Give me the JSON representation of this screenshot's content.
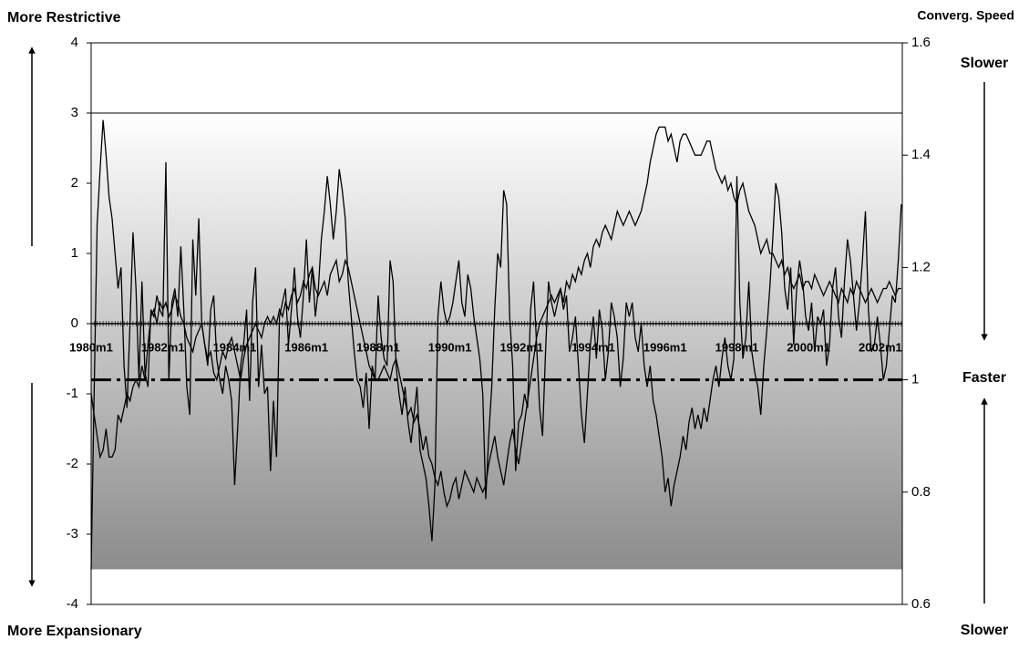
{
  "chart_data": {
    "type": "line",
    "left_top_label": "More Restrictive",
    "left_bottom_label": "More Expansionary",
    "right_axis_title": "Converg. Speed",
    "right_top_label": "Slower",
    "right_middle_label": "Faster",
    "right_bottom_label": "Slower",
    "categories": [
      "1980m1",
      null,
      null,
      null,
      null,
      null,
      null,
      null,
      null,
      null,
      null,
      null,
      null,
      null,
      null,
      null,
      null,
      null,
      null,
      null,
      null,
      null,
      null,
      null,
      "1982m1",
      null,
      null,
      null,
      null,
      null,
      null,
      null,
      null,
      null,
      null,
      null,
      null,
      null,
      null,
      null,
      null,
      null,
      null,
      null,
      null,
      null,
      null,
      null,
      "1984m1",
      null,
      null,
      null,
      null,
      null,
      null,
      null,
      null,
      null,
      null,
      null,
      null,
      null,
      null,
      null,
      null,
      null,
      null,
      null,
      null,
      null,
      null,
      null,
      "1986m1",
      null,
      null,
      null,
      null,
      null,
      null,
      null,
      null,
      null,
      null,
      null,
      null,
      null,
      null,
      null,
      null,
      null,
      null,
      null,
      null,
      null,
      null,
      null,
      "1988m1",
      null,
      null,
      null,
      null,
      null,
      null,
      null,
      null,
      null,
      null,
      null,
      null,
      null,
      null,
      null,
      null,
      null,
      null,
      null,
      null,
      null,
      null,
      null,
      "1990m1",
      null,
      null,
      null,
      null,
      null,
      null,
      null,
      null,
      null,
      null,
      null,
      null,
      null,
      null,
      null,
      null,
      null,
      null,
      null,
      null,
      null,
      null,
      null,
      "1992m1",
      null,
      null,
      null,
      null,
      null,
      null,
      null,
      null,
      null,
      null,
      null,
      null,
      null,
      null,
      null,
      null,
      null,
      null,
      null,
      null,
      null,
      null,
      null,
      "1994m1",
      null,
      null,
      null,
      null,
      null,
      null,
      null,
      null,
      null,
      null,
      null,
      null,
      null,
      null,
      null,
      null,
      null,
      null,
      null,
      null,
      null,
      null,
      null,
      "1996m1",
      null,
      null,
      null,
      null,
      null,
      null,
      null,
      null,
      null,
      null,
      null,
      null,
      null,
      null,
      null,
      null,
      null,
      null,
      null,
      null,
      null,
      null,
      null,
      "1998m1",
      null,
      null,
      null,
      null,
      null,
      null,
      null,
      null,
      null,
      null,
      null,
      null,
      null,
      null,
      null,
      null,
      null,
      null,
      null,
      null,
      null,
      null,
      null,
      "2000m1",
      null,
      null,
      null,
      null,
      null,
      null,
      null,
      null,
      null,
      null,
      null,
      null,
      null,
      null,
      null,
      null,
      null,
      null,
      null,
      null,
      null,
      null,
      null,
      "2002m1",
      null,
      null,
      null,
      null,
      null,
      null,
      null
    ],
    "series": [
      {
        "color": "#000000",
        "values": [
          -3.5,
          -1.0,
          1.4,
          2.2,
          2.9,
          2.4,
          1.8,
          1.5,
          1.0,
          0.5,
          0.8,
          -0.6,
          -1.2,
          0.0,
          1.3,
          0.5,
          -0.8,
          0.6,
          -0.7,
          -0.9,
          0.2,
          0.1,
          0.4,
          0.2,
          0.1,
          2.3,
          -0.8,
          0.3,
          0.5,
          0.1,
          1.1,
          0.2,
          -0.9,
          -1.3,
          1.2,
          0.4,
          1.5,
          0.0,
          -0.3,
          -0.6,
          0.2,
          0.4,
          -0.5,
          -0.8,
          -1.0,
          -0.6,
          -0.8,
          -1.1,
          -2.3,
          -1.5,
          -0.6,
          -0.3,
          0.2,
          -1.1,
          0.3,
          0.8,
          -0.9,
          -0.3,
          -1.0,
          -0.9,
          -2.1,
          -1.1,
          -1.9,
          0.1,
          0.3,
          0.5,
          -0.3,
          0.2,
          0.8,
          0.1,
          -0.2,
          0.4,
          1.2,
          0.3,
          0.8,
          0.1,
          0.5,
          1.2,
          1.6,
          2.1,
          1.7,
          1.2,
          1.6,
          2.2,
          1.9,
          1.5,
          0.6,
          0.1,
          -0.4,
          -0.8,
          -0.9,
          -1.2,
          -0.7,
          -1.5,
          -0.6,
          -0.8,
          0.4,
          -0.2,
          -0.5,
          -0.6,
          0.9,
          0.6,
          -0.6,
          -1.0,
          -1.3,
          -0.9,
          -1.4,
          -1.7,
          -1.3,
          -0.9,
          -1.8,
          -2.0,
          -2.2,
          -2.6,
          -3.1,
          -2.3,
          0.1,
          0.6,
          0.2,
          0.0,
          0.1,
          0.3,
          0.6,
          0.9,
          0.3,
          0.1,
          0.7,
          0.5,
          0.1,
          -0.2,
          -0.5,
          -1.0,
          -2.5,
          -1.6,
          -0.9,
          0.2,
          1.0,
          0.8,
          1.9,
          1.7,
          0.1,
          -0.6,
          -2.1,
          -1.4,
          -1.3,
          -1.0,
          -1.2,
          0.2,
          0.6,
          -0.3,
          -1.2,
          -1.6,
          -0.4,
          0.6,
          0.3,
          0.1,
          0.3,
          0.5,
          0.2,
          0.4,
          -0.4,
          -0.2,
          0.1,
          -0.6,
          -1.3,
          -1.7,
          -1.0,
          -0.3,
          0.1,
          -0.5,
          0.2,
          -0.1,
          -0.8,
          -0.4,
          0.3,
          0.1,
          -0.2,
          -0.9,
          -0.5,
          0.3,
          0.1,
          0.3,
          -0.2,
          -0.4,
          0.0,
          -0.6,
          -0.9,
          -0.6,
          -1.1,
          -1.3,
          -1.6,
          -1.9,
          -2.4,
          -2.2,
          -2.6,
          -2.3,
          -2.1,
          -1.9,
          -1.6,
          -1.8,
          -1.4,
          -1.2,
          -1.5,
          -1.3,
          -1.5,
          -1.2,
          -1.4,
          -1.1,
          -0.8,
          -0.6,
          -0.9,
          -0.5,
          -0.2,
          -0.6,
          -0.8,
          -0.5,
          2.1,
          0.3,
          -0.5,
          -0.2,
          0.6,
          -0.4,
          -0.7,
          -0.9,
          -1.3,
          -0.6,
          -0.1,
          0.5,
          1.2,
          2.0,
          1.8,
          1.3,
          0.5,
          0.2,
          0.8,
          -0.3,
          0.5,
          0.9,
          0.6,
          0.1,
          -0.1,
          0.3,
          -0.4,
          0.1,
          0.0,
          0.2,
          -0.6,
          -0.3,
          0.5,
          0.8,
          0.1,
          -0.2,
          0.6,
          1.2,
          0.9,
          0.4,
          -0.1,
          0.3,
          0.9,
          1.6,
          0.2,
          -0.4,
          -0.3,
          0.1,
          -0.3,
          -0.8,
          -0.6,
          -0.1,
          0.4,
          0.3,
          0.9,
          1.7
        ]
      },
      {
        "color": "#000000",
        "values": [
          -1.0,
          -1.3,
          -1.6,
          -1.9,
          -1.8,
          -1.5,
          -1.9,
          -1.9,
          -1.8,
          -1.3,
          -1.4,
          -1.2,
          -1.0,
          -1.1,
          -0.9,
          -0.8,
          -0.9,
          -0.6,
          -0.8,
          -0.3,
          0.1,
          0.2,
          0.0,
          0.3,
          0.2,
          0.3,
          0.1,
          0.2,
          0.4,
          0.3,
          0.1,
          0.0,
          -0.2,
          -0.3,
          -0.4,
          -0.2,
          -0.1,
          0.0,
          -0.3,
          -0.5,
          -0.4,
          -0.7,
          -0.8,
          -0.6,
          -0.4,
          -0.5,
          -0.3,
          -0.2,
          -0.4,
          -0.6,
          -0.8,
          -0.5,
          -0.3,
          -0.2,
          -0.1,
          0.0,
          -0.1,
          -0.2,
          0.0,
          0.1,
          0.0,
          0.1,
          0.0,
          0.2,
          0.1,
          0.3,
          0.2,
          0.4,
          0.5,
          0.3,
          0.4,
          0.6,
          0.5,
          0.7,
          0.8,
          0.5,
          0.4,
          0.5,
          0.6,
          0.4,
          0.7,
          0.8,
          0.9,
          0.6,
          0.7,
          0.9,
          0.8,
          0.6,
          0.4,
          0.2,
          0.0,
          -0.2,
          -0.4,
          -0.6,
          -0.7,
          -0.8,
          -0.8,
          -0.7,
          -0.6,
          -0.7,
          -0.8,
          -0.6,
          -0.5,
          -0.7,
          -0.9,
          -1.1,
          -1.3,
          -1.2,
          -1.4,
          -1.3,
          -1.5,
          -1.8,
          -1.6,
          -1.9,
          -2.0,
          -2.2,
          -2.3,
          -2.1,
          -2.4,
          -2.6,
          -2.5,
          -2.3,
          -2.2,
          -2.5,
          -2.3,
          -2.1,
          -2.2,
          -2.3,
          -2.4,
          -2.2,
          -2.3,
          -2.4,
          -2.3,
          -2.0,
          -1.8,
          -1.6,
          -1.9,
          -2.1,
          -2.3,
          -2.0,
          -1.7,
          -1.5,
          -1.8,
          -2.0,
          -1.7,
          -1.4,
          -1.1,
          -0.8,
          -0.5,
          -0.2,
          0.0,
          0.1,
          0.2,
          0.3,
          0.4,
          0.3,
          0.4,
          0.5,
          0.3,
          0.6,
          0.5,
          0.7,
          0.6,
          0.8,
          0.7,
          0.9,
          1.0,
          0.8,
          1.1,
          1.2,
          1.1,
          1.3,
          1.4,
          1.3,
          1.2,
          1.4,
          1.6,
          1.5,
          1.4,
          1.5,
          1.6,
          1.5,
          1.4,
          1.5,
          1.6,
          1.8,
          2.0,
          2.3,
          2.5,
          2.7,
          2.8,
          2.8,
          2.8,
          2.6,
          2.7,
          2.5,
          2.3,
          2.6,
          2.7,
          2.7,
          2.6,
          2.5,
          2.4,
          2.4,
          2.4,
          2.5,
          2.6,
          2.6,
          2.4,
          2.2,
          2.1,
          2.0,
          2.1,
          1.9,
          2.0,
          1.8,
          1.7,
          1.9,
          2.0,
          1.8,
          1.6,
          1.5,
          1.4,
          1.2,
          1.0,
          1.1,
          1.2,
          1.0,
          1.0,
          0.9,
          0.8,
          0.9,
          0.7,
          0.8,
          0.6,
          0.5,
          0.6,
          0.7,
          0.5,
          0.6,
          0.6,
          0.5,
          0.7,
          0.6,
          0.5,
          0.4,
          0.5,
          0.6,
          0.5,
          0.4,
          0.3,
          0.5,
          0.4,
          0.3,
          0.5,
          0.4,
          0.6,
          0.5,
          0.4,
          0.3,
          0.4,
          0.5,
          0.4,
          0.3,
          0.4,
          0.5,
          0.5,
          0.6,
          0.5,
          0.4,
          0.5,
          0.5
        ]
      }
    ],
    "ylim": [
      -4,
      4
    ],
    "yticks": [
      -4,
      -3,
      -2,
      -1,
      0,
      1,
      2,
      3,
      4
    ],
    "y2lim": [
      0.6,
      1.6
    ],
    "y2ticks": [
      0.6,
      0.8,
      1,
      1.2,
      1.4,
      1.6
    ],
    "y2_reference_line": 1,
    "shaded_range": [
      -3.5,
      3
    ]
  }
}
